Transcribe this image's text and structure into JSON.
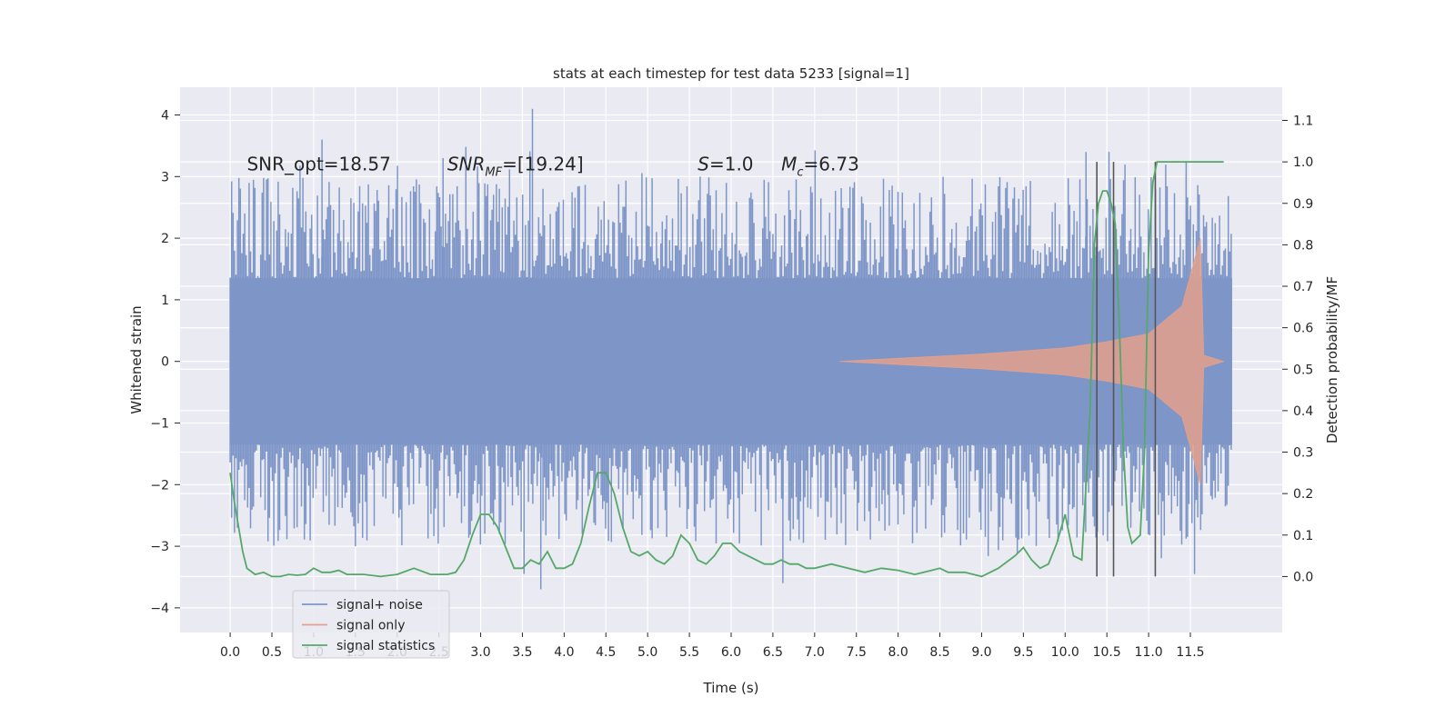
{
  "chart_data": {
    "type": "line",
    "title": "stats at each timestep for test data 5233 [signal=1]",
    "xlabel": "Time (s)",
    "ylabel": "Whitened strain",
    "y2label": "Detection probability/MF",
    "xlim": [
      -0.6,
      12.6
    ],
    "ylim": [
      -4.4,
      4.45
    ],
    "y2lim": [
      -0.135,
      1.18
    ],
    "xticks": [
      0.0,
      0.5,
      1.0,
      1.5,
      2.0,
      2.5,
      3.0,
      3.5,
      4.0,
      4.5,
      5.0,
      5.5,
      6.0,
      6.5,
      7.0,
      7.5,
      8.0,
      8.5,
      9.0,
      9.5,
      10.0,
      10.5,
      11.0,
      11.5
    ],
    "xtick_labels": [
      "0.0",
      "0.5",
      "1.0",
      "1.5",
      "2.0",
      "2.5",
      "3.0",
      "3.5",
      "4.0",
      "4.5",
      "5.0",
      "5.5",
      "6.0",
      "6.5",
      "7.0",
      "7.5",
      "8.0",
      "8.5",
      "9.0",
      "9.5",
      "10.0",
      "10.5",
      "11.0",
      "11.5"
    ],
    "yticks": [
      4,
      3,
      2,
      1,
      0,
      -1,
      -2,
      -3,
      -4
    ],
    "ytick_labels": [
      "4",
      "3",
      "2",
      "1",
      "0",
      "−1",
      "−2",
      "−3",
      "−4"
    ],
    "y2ticks": [
      1.1,
      1.0,
      0.9,
      0.8,
      0.7,
      0.6,
      0.5,
      0.4,
      0.3,
      0.2,
      0.1,
      0.0
    ],
    "y2tick_labels": [
      "1.1",
      "1.0",
      "0.9",
      "0.8",
      "0.7",
      "0.6",
      "0.5",
      "0.4",
      "0.3",
      "0.2",
      "0.1",
      "0.0"
    ],
    "grid": true,
    "legend_position": "lower-left",
    "annotations": [
      {
        "label": "SNR_opt=18.57",
        "x": 0.2,
        "y": 3.1
      },
      {
        "label": "SNR",
        "sub": "MF",
        "suffix": "=[19.24]",
        "x": 2.6,
        "y": 3.1
      },
      {
        "label": "S",
        "sub": "",
        "suffix": "=1.0",
        "x": 5.6,
        "y": 3.1
      },
      {
        "label": "M",
        "sub": "c",
        "suffix": "=6.73",
        "x": 6.6,
        "y": 3.1
      }
    ],
    "series": [
      {
        "name": "signal+ noise",
        "color": "#7e96c7",
        "x_range": [
          0.0,
          12.0
        ],
        "core_amplitude": 1.35,
        "typical_peak": 2.1,
        "max_value": 4.1,
        "min_value": -3.7
      },
      {
        "name": "signal only",
        "color": "#e3a08c",
        "x_range": [
          7.3,
          11.9
        ],
        "envelope": [
          {
            "x": 7.3,
            "amp": 0.0
          },
          {
            "x": 8.0,
            "amp": 0.05
          },
          {
            "x": 9.0,
            "amp": 0.12
          },
          {
            "x": 10.0,
            "amp": 0.22
          },
          {
            "x": 10.5,
            "amp": 0.32
          },
          {
            "x": 11.0,
            "amp": 0.45
          },
          {
            "x": 11.4,
            "amp": 0.9
          },
          {
            "x": 11.62,
            "amp": 2.0
          },
          {
            "x": 11.66,
            "amp": 0.1
          },
          {
            "x": 11.9,
            "amp": 0.0
          }
        ]
      },
      {
        "name": "signal statistics",
        "color": "#55a868",
        "axis": "right",
        "x": [
          0.0,
          0.05,
          0.1,
          0.15,
          0.2,
          0.3,
          0.4,
          0.5,
          0.6,
          0.7,
          0.8,
          0.9,
          1.0,
          1.1,
          1.2,
          1.3,
          1.4,
          1.6,
          1.8,
          2.0,
          2.2,
          2.4,
          2.6,
          2.7,
          2.8,
          2.9,
          3.0,
          3.1,
          3.2,
          3.3,
          3.4,
          3.5,
          3.6,
          3.7,
          3.8,
          3.9,
          4.0,
          4.1,
          4.2,
          4.3,
          4.4,
          4.5,
          4.6,
          4.7,
          4.8,
          4.9,
          5.0,
          5.1,
          5.2,
          5.3,
          5.4,
          5.5,
          5.6,
          5.7,
          5.8,
          5.9,
          6.0,
          6.1,
          6.2,
          6.3,
          6.4,
          6.5,
          6.6,
          6.7,
          6.8,
          6.9,
          7.0,
          7.2,
          7.4,
          7.6,
          7.8,
          8.0,
          8.2,
          8.4,
          8.5,
          8.6,
          8.8,
          9.0,
          9.2,
          9.4,
          9.5,
          9.6,
          9.7,
          9.8,
          9.9,
          10.0,
          10.1,
          10.2,
          10.3,
          10.35,
          10.4,
          10.45,
          10.5,
          10.55,
          10.6,
          10.65,
          10.7,
          10.75,
          10.8,
          10.9,
          10.95,
          11.0,
          11.05,
          11.1,
          11.15,
          11.2,
          11.3,
          11.5,
          11.7,
          11.9
        ],
        "y": [
          0.25,
          0.18,
          0.12,
          0.06,
          0.02,
          0.005,
          0.01,
          0.0,
          0.0,
          0.005,
          0.003,
          0.005,
          0.02,
          0.01,
          0.01,
          0.015,
          0.005,
          0.005,
          0.0,
          0.005,
          0.02,
          0.005,
          0.005,
          0.01,
          0.04,
          0.1,
          0.15,
          0.15,
          0.12,
          0.07,
          0.02,
          0.02,
          0.04,
          0.03,
          0.06,
          0.02,
          0.02,
          0.03,
          0.08,
          0.17,
          0.25,
          0.25,
          0.2,
          0.12,
          0.06,
          0.05,
          0.06,
          0.04,
          0.03,
          0.05,
          0.1,
          0.08,
          0.04,
          0.03,
          0.05,
          0.08,
          0.08,
          0.06,
          0.05,
          0.04,
          0.03,
          0.03,
          0.04,
          0.03,
          0.03,
          0.02,
          0.02,
          0.03,
          0.02,
          0.01,
          0.02,
          0.015,
          0.005,
          0.015,
          0.02,
          0.01,
          0.01,
          0.0,
          0.02,
          0.05,
          0.07,
          0.04,
          0.02,
          0.03,
          0.08,
          0.15,
          0.05,
          0.04,
          0.4,
          0.8,
          0.9,
          0.93,
          0.93,
          0.9,
          0.85,
          0.6,
          0.3,
          0.12,
          0.08,
          0.1,
          0.3,
          0.78,
          0.95,
          1.0,
          1.0,
          1.0,
          1.0,
          1.0,
          1.0,
          1.0
        ]
      }
    ],
    "vertical_lines": [
      10.38,
      10.58,
      11.08
    ]
  }
}
